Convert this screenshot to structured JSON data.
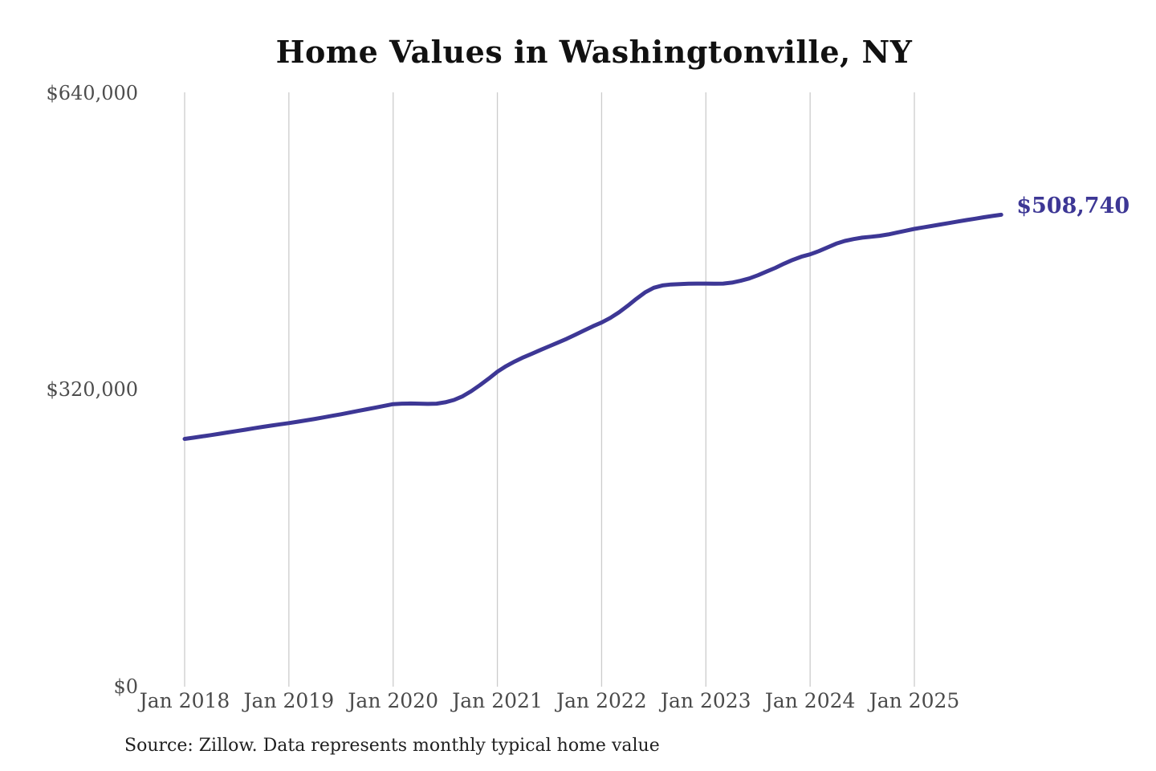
{
  "page": {
    "title": "Home Values in Washingtonville, NY",
    "source_note": "Source: Zillow. Data represents monthly typical home value",
    "latest_value_label": "$508,740"
  },
  "colors": {
    "line": "#3d3795",
    "end_label": "#3d3795",
    "grid": "#cccccc",
    "axis_text": "#4a4a4a",
    "title_text": "#111111",
    "background": "#ffffff"
  },
  "chart_data": {
    "type": "line",
    "title": "Home Values in Washingtonville, NY",
    "xlabel": "",
    "ylabel": "",
    "x_interval": "monthly",
    "x_start": "2018-01",
    "x_end": "2025-11",
    "x_tick_labels": [
      "Jan 2018",
      "Jan 2019",
      "Jan 2020",
      "Jan 2021",
      "Jan 2022",
      "Jan 2023",
      "Jan 2024",
      "Jan 2025"
    ],
    "months_per_x_tick": 12,
    "y_tick_values": [
      0,
      320000,
      640000
    ],
    "y_tick_labels": [
      "$0",
      "$320,000",
      "$640,000"
    ],
    "ylim": [
      0,
      640000
    ],
    "grid": "vertical-only",
    "legend": "none",
    "end_value": 508740,
    "annotation": "$508,740",
    "series": [
      {
        "name": "Typical home value (USD)",
        "values": [
          267000,
          268300,
          269700,
          271100,
          272500,
          274000,
          275500,
          277000,
          278500,
          280000,
          281400,
          282800,
          284100,
          285500,
          287000,
          288600,
          290200,
          291900,
          293600,
          295400,
          297200,
          299000,
          300900,
          302700,
          304500,
          305000,
          305200,
          305000,
          304800,
          305000,
          306500,
          309000,
          313000,
          318500,
          325000,
          332000,
          339500,
          345500,
          350500,
          355000,
          359000,
          363000,
          367000,
          371000,
          375000,
          379500,
          384000,
          388500,
          392500,
          397500,
          403500,
          410500,
          418000,
          425000,
          430000,
          432500,
          433500,
          434000,
          434300,
          434500,
          434500,
          434300,
          434500,
          435500,
          437500,
          440000,
          443500,
          447500,
          451500,
          456000,
          460000,
          463500,
          466000,
          469500,
          473500,
          477500,
          480500,
          482500,
          484000,
          485000,
          486000,
          487500,
          489500,
          491500,
          493500,
          495000,
          496600,
          498200,
          499800,
          501400,
          503000,
          504500,
          506000,
          507400,
          508740
        ]
      }
    ]
  }
}
